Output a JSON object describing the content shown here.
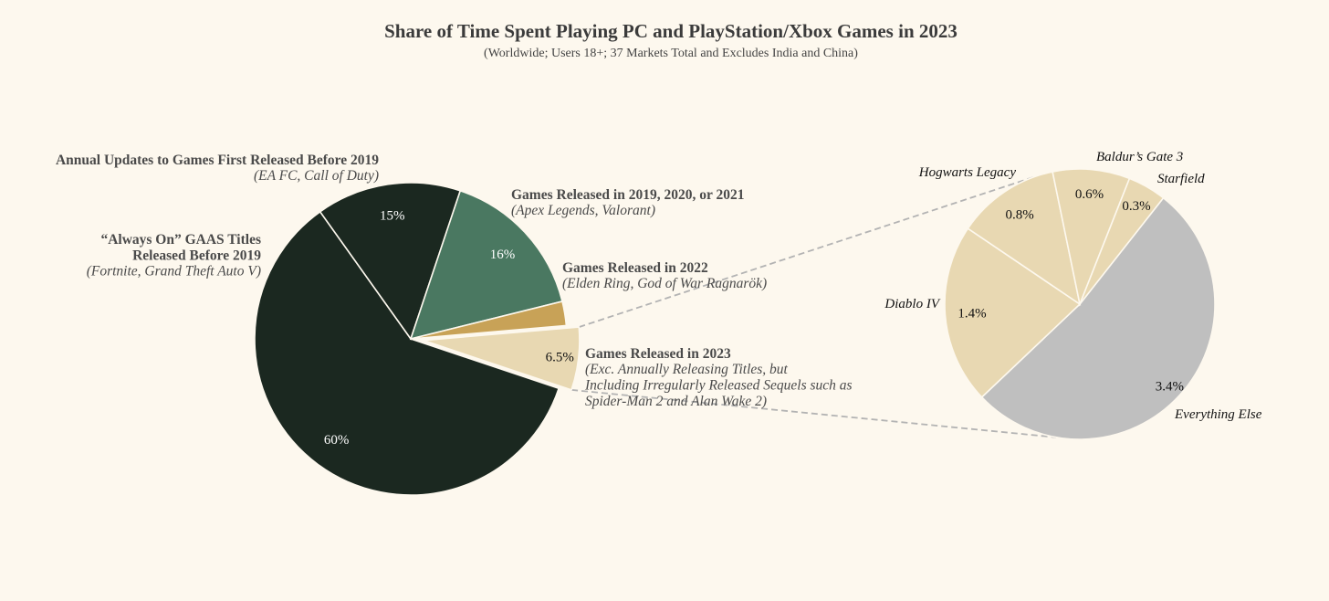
{
  "chart_data": {
    "type": "pie",
    "title": "Share of Time Spent Playing PC and PlayStation/Xbox Games in 2023",
    "subtitle": "(Worldwide; Users 18+; 37 Markets Total and Excludes India and China)",
    "main_pie": {
      "slices": [
        {
          "key": "gaas",
          "value": 60,
          "label": "60%",
          "color": "#1b2820",
          "name_lines": [
            "“Always On” GAAS Titles",
            "Released Before 2019"
          ],
          "example_lines": [
            "(Fortnite, Grand Theft Auto V)"
          ]
        },
        {
          "key": "annual",
          "value": 15,
          "label": "15%",
          "color": "#1b2820",
          "name_lines": [
            "Annual Updates to Games First Released Before 2019"
          ],
          "example_lines": [
            "(EA FC, Call of Duty)"
          ]
        },
        {
          "key": "y2019",
          "value": 16,
          "label": "16%",
          "color": "#4a7861",
          "name_lines": [
            "Games Released in 2019, 2020, or 2021"
          ],
          "example_lines": [
            "(Apex Legends, Valorant)"
          ]
        },
        {
          "key": "y2022",
          "value": 2.5,
          "label": "",
          "color": "#c8a257",
          "name_lines": [
            "Games Released in 2022"
          ],
          "example_lines": [
            "(Elden Ring, God of War Ragnarök)"
          ]
        },
        {
          "key": "y2023",
          "value": 6.5,
          "label": "6.5%",
          "color": "#e8d8b2",
          "exploded": true,
          "name_lines": [
            "Games Released in 2023"
          ],
          "example_lines": [
            "(Exc. Annually Releasing Titles, but",
            "Including Irregularly Released Sequels such as",
            "Spider-Man 2 and Alan Wake 2)"
          ]
        }
      ]
    },
    "detail_pie": {
      "breaks_down": "Games Released in 2023",
      "slices": [
        {
          "key": "everything",
          "name": "Everything Else",
          "value": 3.4,
          "label": "3.4%",
          "color": "#bfbfbf"
        },
        {
          "key": "diablo",
          "name": "Diablo IV",
          "value": 1.4,
          "label": "1.4%",
          "color": "#e8d8b2"
        },
        {
          "key": "hogwarts",
          "name": "Hogwarts Legacy",
          "value": 0.8,
          "label": "0.8%",
          "color": "#e8d8b2"
        },
        {
          "key": "baldur",
          "name": "Baldur’s Gate 3",
          "value": 0.6,
          "label": "0.6%",
          "color": "#e8d8b2"
        },
        {
          "key": "starfield",
          "name": "Starfield",
          "value": 0.3,
          "label": "0.3%",
          "color": "#e8d8b2"
        }
      ]
    },
    "legend": "none",
    "grid": false
  }
}
